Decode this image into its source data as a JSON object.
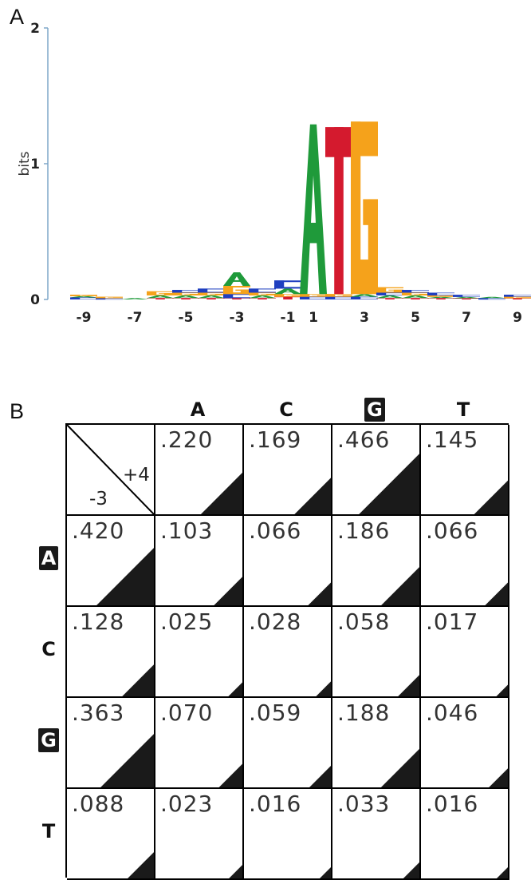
{
  "panels": {
    "a_label": "A",
    "b_label": "B"
  },
  "colors": {
    "A": "#1f9a3a",
    "C": "#1f3fc0",
    "G": "#f5a21b",
    "T": "#d41a2e",
    "triangle": "#1a1a1a"
  },
  "logo": {
    "ylabel": "bits",
    "y_ticks": [
      "0",
      "1",
      "2"
    ],
    "x_ticks": [
      "-9",
      "-7",
      "-5",
      "-3",
      "-1",
      "1",
      "3",
      "5",
      "7",
      "9"
    ],
    "x_tick_positions": [
      -9,
      -7,
      -5,
      -3,
      -1,
      1,
      3,
      5,
      7,
      9
    ],
    "columns": [
      {
        "pos": -9,
        "letters": [
          [
            "C",
            0.015
          ],
          [
            "A",
            0.01
          ],
          [
            "G",
            0.01
          ]
        ]
      },
      {
        "pos": -8,
        "letters": [
          [
            "C",
            0.01
          ],
          [
            "G",
            0.01
          ]
        ]
      },
      {
        "pos": -7,
        "letters": [
          [
            "A",
            0.01
          ]
        ]
      },
      {
        "pos": -6,
        "letters": [
          [
            "T",
            0.01
          ],
          [
            "A",
            0.02
          ],
          [
            "G",
            0.03
          ]
        ]
      },
      {
        "pos": -5,
        "letters": [
          [
            "T",
            0.01
          ],
          [
            "A",
            0.02
          ],
          [
            "G",
            0.02
          ],
          [
            "C",
            0.02
          ]
        ]
      },
      {
        "pos": -4,
        "letters": [
          [
            "T",
            0.01
          ],
          [
            "A",
            0.02
          ],
          [
            "G",
            0.02
          ],
          [
            "C",
            0.03
          ]
        ]
      },
      {
        "pos": -3,
        "letters": [
          [
            "T",
            0.01
          ],
          [
            "C",
            0.03
          ],
          [
            "G",
            0.06
          ],
          [
            "A",
            0.1
          ]
        ]
      },
      {
        "pos": -2,
        "letters": [
          [
            "T",
            0.01
          ],
          [
            "A",
            0.02
          ],
          [
            "G",
            0.02
          ],
          [
            "C",
            0.03
          ]
        ]
      },
      {
        "pos": -1,
        "letters": [
          [
            "T",
            0.02
          ],
          [
            "G",
            0.02
          ],
          [
            "A",
            0.04
          ],
          [
            "C",
            0.06
          ]
        ]
      },
      {
        "pos": 1,
        "letters": [
          [
            "C",
            0.02
          ],
          [
            "G",
            0.02
          ],
          [
            "A",
            1.25
          ]
        ]
      },
      {
        "pos": 2,
        "letters": [
          [
            "C",
            0.02
          ],
          [
            "G",
            0.02
          ],
          [
            "T",
            1.23
          ]
        ]
      },
      {
        "pos": 3,
        "letters": [
          [
            "C",
            0.02
          ],
          [
            "A",
            0.02
          ],
          [
            "G",
            1.27
          ]
        ]
      },
      {
        "pos": 4,
        "letters": [
          [
            "T",
            0.01
          ],
          [
            "A",
            0.02
          ],
          [
            "C",
            0.02
          ],
          [
            "G",
            0.04
          ]
        ]
      },
      {
        "pos": 5,
        "letters": [
          [
            "T",
            0.01
          ],
          [
            "A",
            0.02
          ],
          [
            "G",
            0.02
          ],
          [
            "C",
            0.02
          ]
        ]
      },
      {
        "pos": 6,
        "letters": [
          [
            "T",
            0.01
          ],
          [
            "A",
            0.01
          ],
          [
            "G",
            0.01
          ],
          [
            "C",
            0.02
          ]
        ]
      },
      {
        "pos": 7,
        "letters": [
          [
            "T",
            0.005
          ],
          [
            "A",
            0.01
          ],
          [
            "C",
            0.015
          ]
        ]
      },
      {
        "pos": 8,
        "letters": [
          [
            "C",
            0.01
          ],
          [
            "A",
            0.005
          ]
        ]
      },
      {
        "pos": 9,
        "letters": [
          [
            "T",
            0.01
          ],
          [
            "G",
            0.01
          ],
          [
            "C",
            0.015
          ]
        ]
      }
    ]
  },
  "matrix": {
    "corner": {
      "col_position": "+4",
      "row_position": "-3"
    },
    "columns": [
      {
        "base": "A",
        "boxed": false
      },
      {
        "base": "C",
        "boxed": false
      },
      {
        "base": "G",
        "boxed": true
      },
      {
        "base": "T",
        "boxed": false
      }
    ],
    "column_totals": [
      {
        "text": ".220",
        "value": 0.22
      },
      {
        "text": ".169",
        "value": 0.169
      },
      {
        "text": ".466",
        "value": 0.466
      },
      {
        "text": ".145",
        "value": 0.145
      }
    ],
    "rows": [
      {
        "base": "A",
        "boxed": true,
        "total": {
          "text": ".420",
          "value": 0.42
        },
        "cells": [
          {
            "text": ".103",
            "value": 0.103
          },
          {
            "text": ".066",
            "value": 0.066
          },
          {
            "text": ".186",
            "value": 0.186
          },
          {
            "text": ".066",
            "value": 0.066
          }
        ]
      },
      {
        "base": "C",
        "boxed": false,
        "total": {
          "text": ".128",
          "value": 0.128
        },
        "cells": [
          {
            "text": ".025",
            "value": 0.025
          },
          {
            "text": ".028",
            "value": 0.028
          },
          {
            "text": ".058",
            "value": 0.058
          },
          {
            "text": ".017",
            "value": 0.017
          }
        ]
      },
      {
        "base": "G",
        "boxed": true,
        "total": {
          "text": ".363",
          "value": 0.363
        },
        "cells": [
          {
            "text": ".070",
            "value": 0.07
          },
          {
            "text": ".059",
            "value": 0.059
          },
          {
            "text": ".188",
            "value": 0.188
          },
          {
            "text": ".046",
            "value": 0.046
          }
        ]
      },
      {
        "base": "T",
        "boxed": false,
        "total": {
          "text": ".088",
          "value": 0.088
        },
        "cells": [
          {
            "text": ".023",
            "value": 0.023
          },
          {
            "text": ".016",
            "value": 0.016
          },
          {
            "text": ".033",
            "value": 0.033
          },
          {
            "text": ".016",
            "value": 0.016
          }
        ]
      }
    ]
  }
}
